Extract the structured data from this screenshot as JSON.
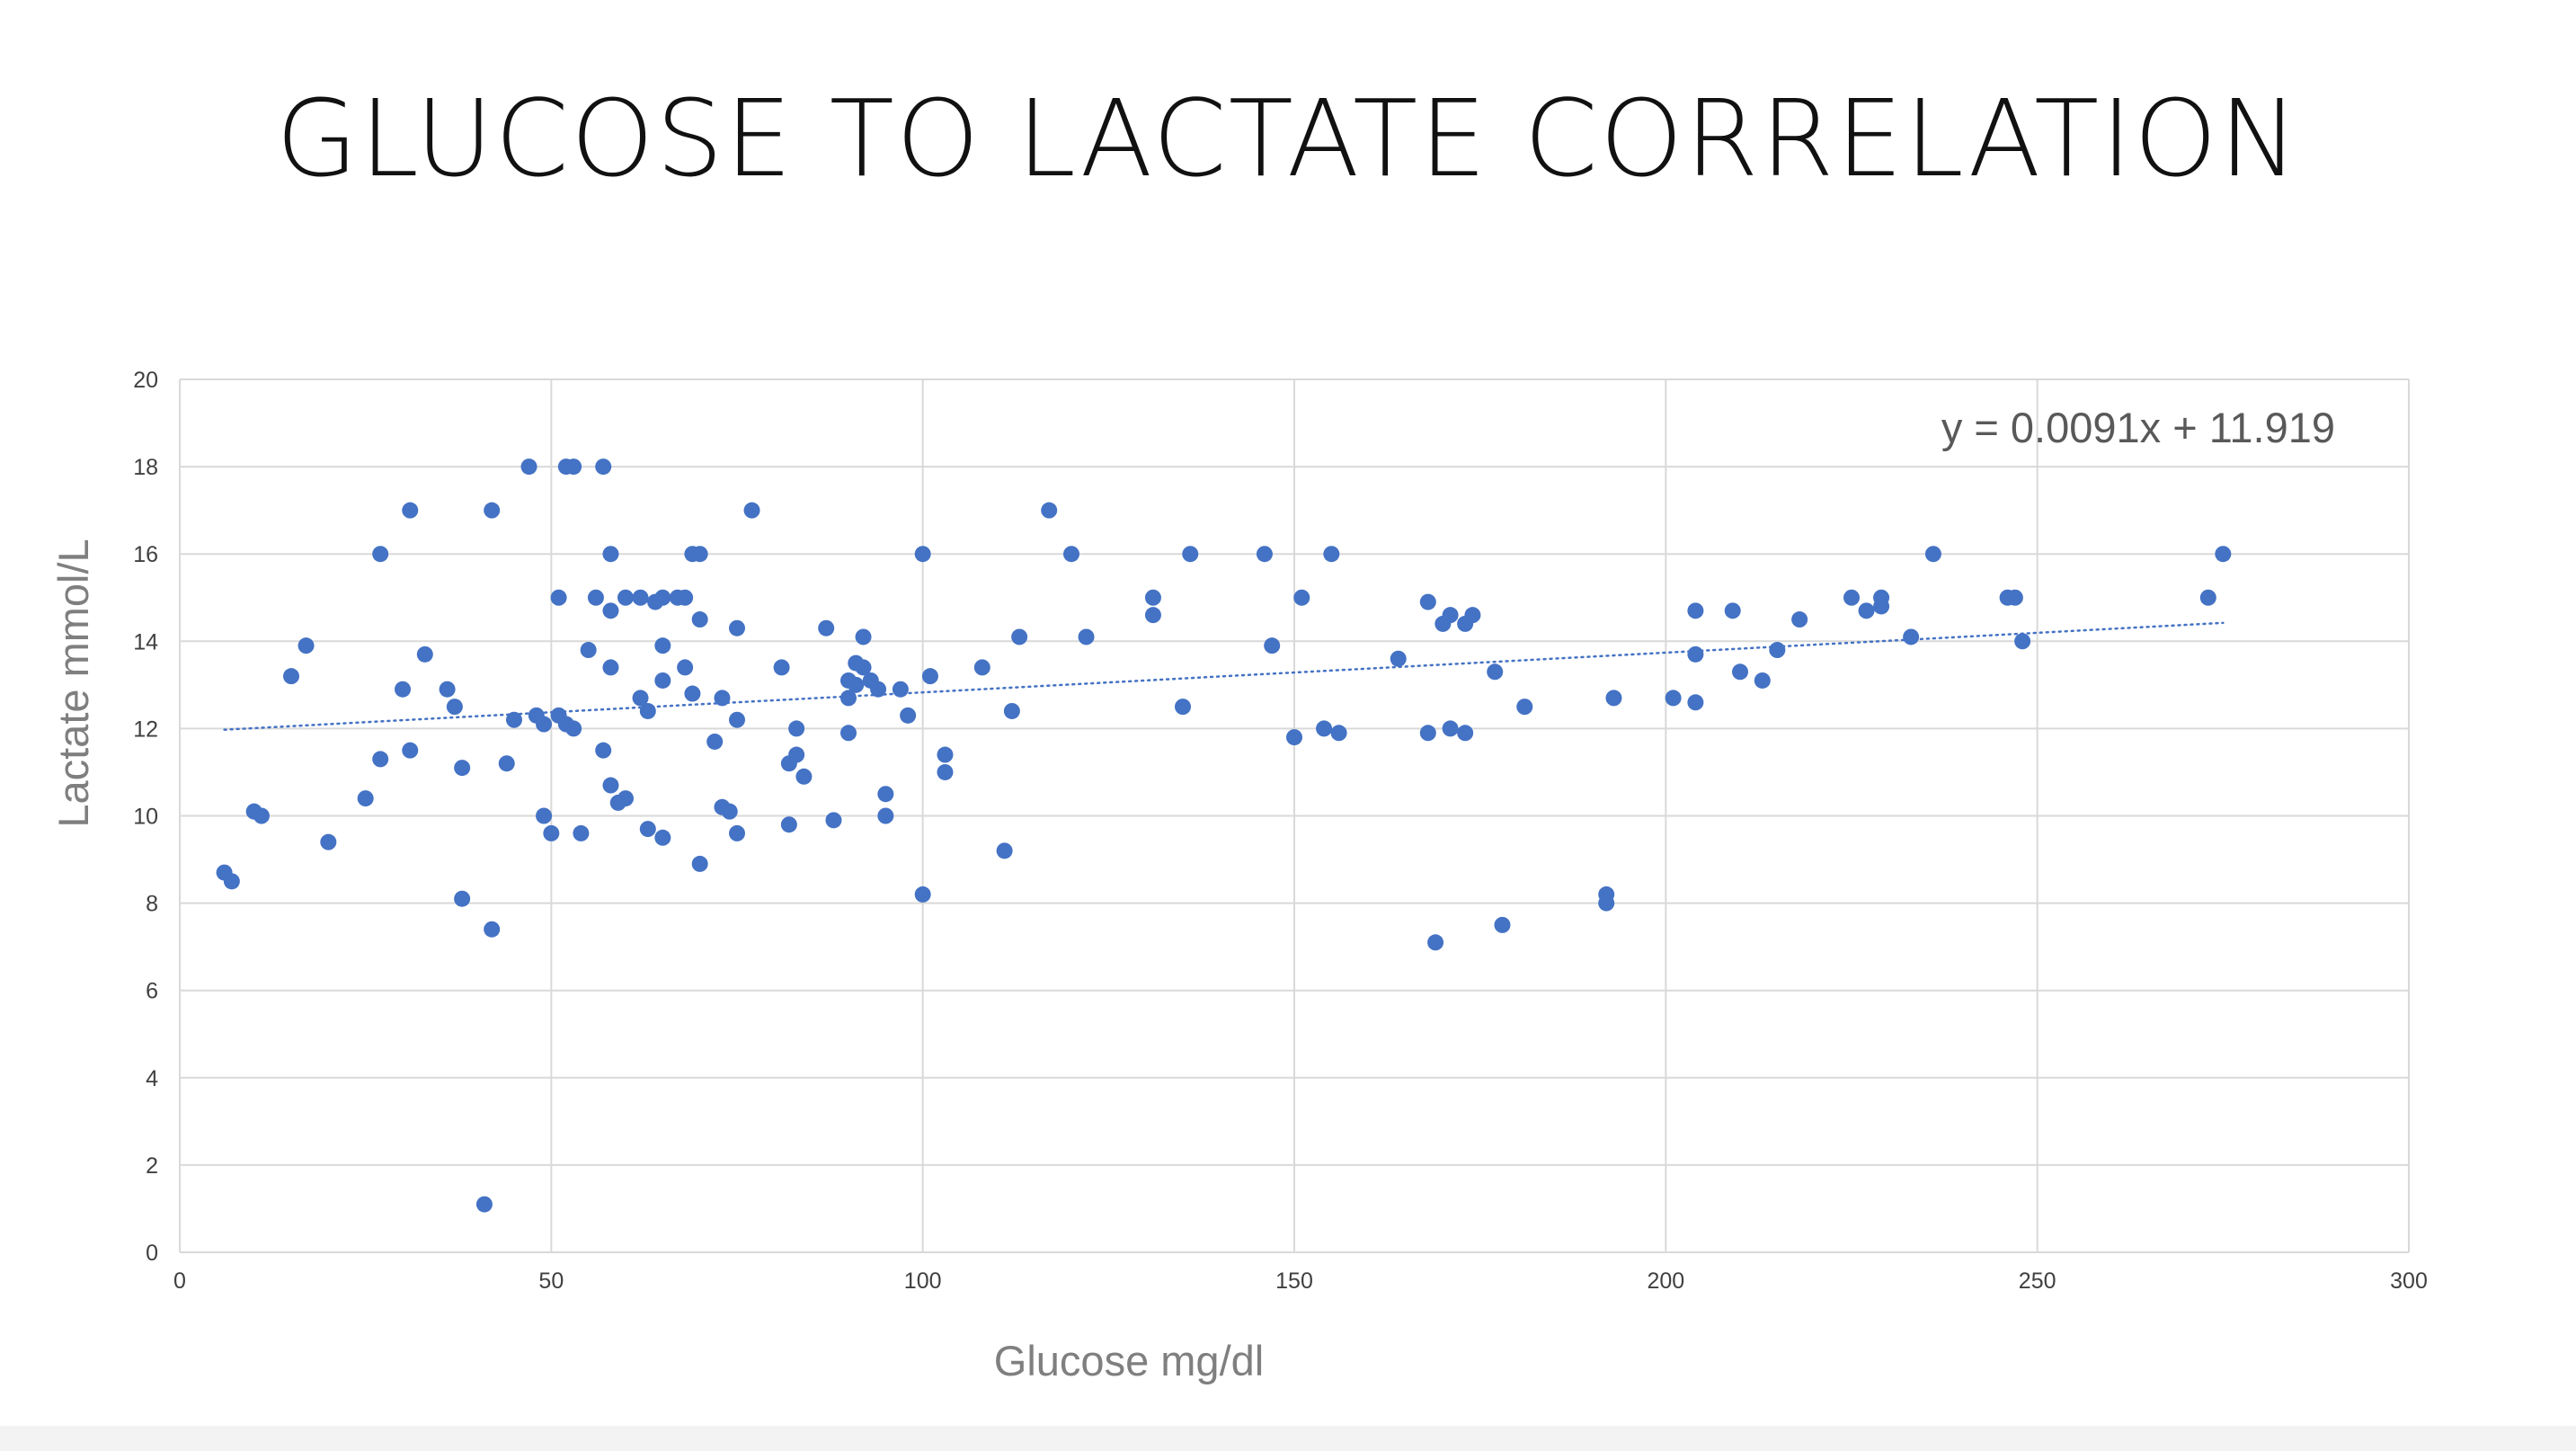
{
  "slide": {
    "title": "GLUCOSE TO LACTATE CORRELATION"
  },
  "chart_data": {
    "type": "scatter",
    "title": "",
    "xlabel": "Glucose mg/dl",
    "ylabel": "Lactate mmol/L",
    "xlim": [
      0,
      300
    ],
    "ylim": [
      0,
      20
    ],
    "x_ticks": [
      0,
      50,
      100,
      150,
      200,
      250,
      300
    ],
    "y_ticks": [
      0,
      2,
      4,
      6,
      8,
      10,
      12,
      14,
      16,
      18,
      20
    ],
    "grid": true,
    "legend": "none",
    "marker_color": "#4472c4",
    "trendline": {
      "type": "linear",
      "slope": 0.0091,
      "intercept": 11.919,
      "x_range": [
        6,
        275
      ],
      "equation_label": "y = 0.0091x + 11.919",
      "style": "dotted",
      "color": "#4472c4"
    },
    "series": [
      {
        "points": [
          [
            6,
            8.7
          ],
          [
            7,
            8.5
          ],
          [
            10,
            10.1
          ],
          [
            11,
            10.0
          ],
          [
            15,
            13.2
          ],
          [
            17,
            13.9
          ],
          [
            20,
            9.4
          ],
          [
            25,
            10.4
          ],
          [
            27,
            11.3
          ],
          [
            27,
            16.0
          ],
          [
            30,
            12.9
          ],
          [
            31,
            11.5
          ],
          [
            31,
            17.0
          ],
          [
            33,
            13.7
          ],
          [
            36,
            12.9
          ],
          [
            37,
            12.5
          ],
          [
            38,
            11.1
          ],
          [
            38,
            8.1
          ],
          [
            41,
            1.1
          ],
          [
            42,
            7.4
          ],
          [
            42,
            17.0
          ],
          [
            44,
            11.2
          ],
          [
            45,
            12.2
          ],
          [
            47,
            18.0
          ],
          [
            48,
            12.3
          ],
          [
            49,
            12.1
          ],
          [
            49,
            10.0
          ],
          [
            50,
            9.6
          ],
          [
            51,
            12.3
          ],
          [
            51,
            15.0
          ],
          [
            52,
            12.1
          ],
          [
            52,
            18.0
          ],
          [
            53,
            18.0
          ],
          [
            53,
            12.0
          ],
          [
            54,
            9.6
          ],
          [
            55,
            13.8
          ],
          [
            56,
            15.0
          ],
          [
            57,
            18.0
          ],
          [
            57,
            11.5
          ],
          [
            58,
            16.0
          ],
          [
            58,
            14.7
          ],
          [
            58,
            13.4
          ],
          [
            58,
            10.7
          ],
          [
            59,
            10.3
          ],
          [
            60,
            10.4
          ],
          [
            60,
            15.0
          ],
          [
            62,
            15.0
          ],
          [
            62,
            12.7
          ],
          [
            63,
            12.4
          ],
          [
            63,
            9.7
          ],
          [
            64,
            14.9
          ],
          [
            65,
            15.0
          ],
          [
            65,
            13.9
          ],
          [
            65,
            13.1
          ],
          [
            65,
            9.5
          ],
          [
            67,
            15.0
          ],
          [
            68,
            15.0
          ],
          [
            68,
            13.4
          ],
          [
            69,
            16.0
          ],
          [
            69,
            12.8
          ],
          [
            70,
            16.0
          ],
          [
            70,
            14.5
          ],
          [
            70,
            8.9
          ],
          [
            72,
            11.7
          ],
          [
            73,
            12.7
          ],
          [
            73,
            10.2
          ],
          [
            74,
            10.1
          ],
          [
            75,
            14.3
          ],
          [
            75,
            12.2
          ],
          [
            75,
            9.6
          ],
          [
            77,
            17.0
          ],
          [
            81,
            13.4
          ],
          [
            82,
            11.2
          ],
          [
            82,
            9.8
          ],
          [
            83,
            12.0
          ],
          [
            83,
            11.4
          ],
          [
            84,
            10.9
          ],
          [
            87,
            14.3
          ],
          [
            88,
            9.9
          ],
          [
            90,
            13.1
          ],
          [
            90,
            12.7
          ],
          [
            90,
            11.9
          ],
          [
            91,
            13.5
          ],
          [
            91,
            13.0
          ],
          [
            92,
            14.1
          ],
          [
            92,
            13.4
          ],
          [
            93,
            13.1
          ],
          [
            94,
            12.9
          ],
          [
            95,
            10.5
          ],
          [
            95,
            10.0
          ],
          [
            97,
            12.9
          ],
          [
            98,
            12.3
          ],
          [
            100,
            16.0
          ],
          [
            100,
            8.2
          ],
          [
            101,
            13.2
          ],
          [
            103,
            11.4
          ],
          [
            103,
            11.0
          ],
          [
            108,
            13.4
          ],
          [
            111,
            9.2
          ],
          [
            112,
            12.4
          ],
          [
            113,
            14.1
          ],
          [
            117,
            17.0
          ],
          [
            120,
            16.0
          ],
          [
            122,
            14.1
          ],
          [
            131,
            15.0
          ],
          [
            131,
            14.6
          ],
          [
            135,
            12.5
          ],
          [
            136,
            16.0
          ],
          [
            146,
            16.0
          ],
          [
            147,
            13.9
          ],
          [
            150,
            11.8
          ],
          [
            151,
            15.0
          ],
          [
            154,
            12.0
          ],
          [
            155,
            16.0
          ],
          [
            156,
            11.9
          ],
          [
            164,
            13.6
          ],
          [
            168,
            14.9
          ],
          [
            168,
            11.9
          ],
          [
            169,
            7.1
          ],
          [
            170,
            14.4
          ],
          [
            171,
            14.6
          ],
          [
            171,
            12.0
          ],
          [
            173,
            14.4
          ],
          [
            173,
            11.9
          ],
          [
            174,
            14.6
          ],
          [
            177,
            13.3
          ],
          [
            178,
            7.5
          ],
          [
            181,
            12.5
          ],
          [
            192,
            8.2
          ],
          [
            192,
            8.0
          ],
          [
            193,
            12.7
          ],
          [
            201,
            12.7
          ],
          [
            204,
            14.7
          ],
          [
            204,
            13.7
          ],
          [
            204,
            12.6
          ],
          [
            209,
            14.7
          ],
          [
            210,
            13.3
          ],
          [
            213,
            13.1
          ],
          [
            215,
            13.8
          ],
          [
            218,
            14.5
          ],
          [
            225,
            15.0
          ],
          [
            227,
            14.7
          ],
          [
            229,
            15.0
          ],
          [
            229,
            14.8
          ],
          [
            233,
            14.1
          ],
          [
            236,
            16.0
          ],
          [
            246,
            15.0
          ],
          [
            247,
            15.0
          ],
          [
            248,
            14.0
          ],
          [
            273,
            15.0
          ],
          [
            275,
            16.0
          ]
        ]
      }
    ]
  }
}
